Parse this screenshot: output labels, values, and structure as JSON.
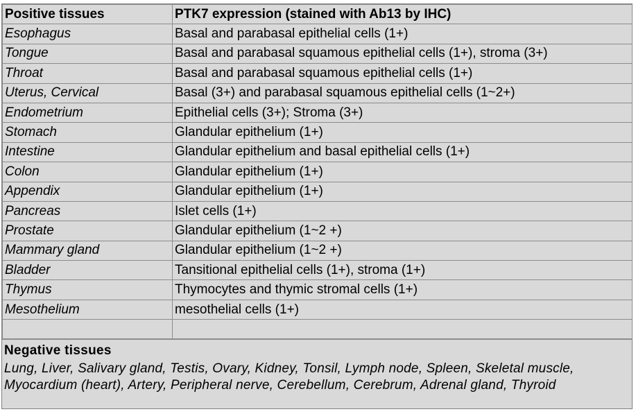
{
  "table": {
    "header": {
      "col1": "Positive tissues",
      "col2": "PTK7 expression (stained with Ab13 by IHC)"
    },
    "rows": [
      {
        "tissue": "Esophagus",
        "expression": "Basal and parabasal epithelial cells (1+)"
      },
      {
        "tissue": "Tongue",
        "expression": "Basal and parabasal squamous epithelial cells (1+), stroma (3+)"
      },
      {
        "tissue": "Throat",
        "expression": "Basal and parabasal squamous epithelial cells (1+)"
      },
      {
        "tissue": "Uterus, Cervical",
        "expression": "Basal (3+) and parabasal squamous epithelial cells (1~2+)"
      },
      {
        "tissue": "Endometrium",
        "expression": "Epithelial cells (3+); Stroma (3+)"
      },
      {
        "tissue": "Stomach",
        "expression": "Glandular epithelium (1+)"
      },
      {
        "tissue": "Intestine",
        "expression": "Glandular epithelium and basal epithelial cells (1+)"
      },
      {
        "tissue": "Colon",
        "expression": "Glandular epithelium (1+)"
      },
      {
        "tissue": "Appendix",
        "expression": "Glandular epithelium (1+)"
      },
      {
        "tissue": "Pancreas",
        "expression": "Islet cells (1+)"
      },
      {
        "tissue": "Prostate",
        "expression": "Glandular epithelium (1~2 +)"
      },
      {
        "tissue": "Mammary gland",
        "expression": "Glandular epithelium (1~2 +)"
      },
      {
        "tissue": "Bladder",
        "expression": "Tansitional epithelial cells (1+), stroma (1+)"
      },
      {
        "tissue": "Thymus",
        "expression": "Thymocytes and thymic stromal cells (1+)"
      },
      {
        "tissue": "Mesothelium",
        "expression": "mesothelial cells (1+)"
      }
    ]
  },
  "negative": {
    "title": "Negative tissues",
    "list": "Lung, Liver, Salivary gland, Testis, Ovary, Kidney, Tonsil, Lymph node, Spleen, Skeletal muscle, Myocardium (heart), Artery, Peripheral nerve, Cerebellum, Cerebrum, Adrenal gland, Thyroid"
  }
}
